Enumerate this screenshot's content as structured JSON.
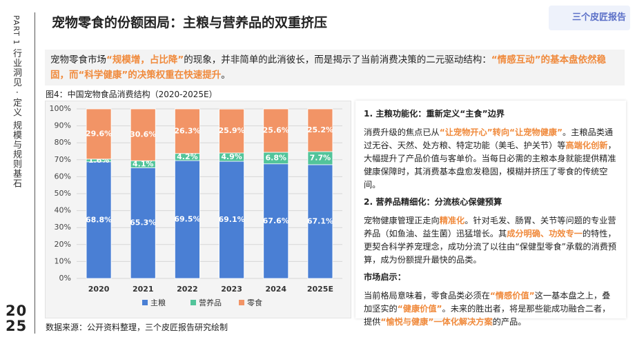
{
  "sidebar": {
    "part": "PART 1",
    "section": "行业洞见 · 定义 规模与规则基石",
    "year": "2025"
  },
  "header": {
    "title": "宠物零食的份额困局：主粮与营养品的双重挤压",
    "logo": "三个皮匠报告"
  },
  "intro": [
    {
      "text": "宠物零食市场"
    },
    {
      "text": "“规模增，占比降”",
      "highlight": true
    },
    {
      "text": "的现象，并非简单的此消彼长，而是揭示了当前消费决策的二元驱动结构："
    },
    {
      "text": "“情感互动”的基本盘依然稳固，而“科学健康”的决策权重在快速提升",
      "highlight": true
    },
    {
      "text": "。"
    }
  ],
  "chart_data": {
    "type": "stacked_bar",
    "caption": "图4：中国宠物食品消费结构（2020-2025E）",
    "categories": [
      "2020",
      "2021",
      "2022",
      "2023",
      "2024",
      "2025E"
    ],
    "series": [
      {
        "name": "主粮",
        "color": "#4a7fd4",
        "values": [
          68.8,
          65.3,
          69.5,
          69.1,
          67.6,
          67.1
        ],
        "value_labels": [
          "68.8%",
          "65.3%",
          "69.5%",
          "69.1%",
          "67.6%",
          "67.1%"
        ]
      },
      {
        "name": "营养品",
        "color": "#52c49a",
        "values": [
          1.6,
          4.1,
          4.2,
          4.9,
          6.8,
          7.7
        ],
        "value_labels": [
          "1.6%",
          "4.1%",
          "4.2%",
          "4.9%",
          "6.8%",
          "7.7%"
        ]
      },
      {
        "name": "零食",
        "color": "#f29466",
        "values": [
          29.6,
          30.6,
          26.3,
          25.9,
          25.6,
          25.2
        ],
        "value_labels": [
          "29.6%",
          "30.6%",
          "26.3%",
          "25.9%",
          "25.6%",
          "25.2%"
        ]
      }
    ],
    "ylim": [
      0,
      100
    ],
    "yticks": [
      {
        "value": 0,
        "label": "0%"
      },
      {
        "value": 10,
        "label": "10%"
      },
      {
        "value": 20,
        "label": "20%"
      },
      {
        "value": 30,
        "label": "30%"
      },
      {
        "value": 40,
        "label": "40%"
      },
      {
        "value": 50,
        "label": "50%"
      },
      {
        "value": 60,
        "label": "60%"
      },
      {
        "value": 70,
        "label": "70%"
      },
      {
        "value": 80,
        "label": "80%"
      },
      {
        "value": 90,
        "label": "90%"
      },
      {
        "value": 100,
        "label": "100%"
      }
    ],
    "grid": true,
    "legend": "bottom"
  },
  "panel": [
    {
      "heading": "1. 主粮功能化：重新定义“主食”边界",
      "body": [
        {
          "text": "消费升级的焦点已从"
        },
        {
          "text": "“让宠物开心”转向“让宠物健康”",
          "highlight": true
        },
        {
          "text": "。主粮品类通过无谷、天然、处方粮、特定功能（美毛、护关节）等"
        },
        {
          "text": "高端化创新",
          "highlight": true
        },
        {
          "text": "，大幅提升了产品价值与客单价。当每日必需的主粮本身就能提供精准健康保障时，其消费基本盘愈发稳固，模糊并挤压了零食的传统空间。"
        }
      ]
    },
    {
      "heading": "2. 营养品精细化：分流核心保健预算",
      "body": [
        {
          "text": "宠物健康管理正走向"
        },
        {
          "text": "精准化",
          "highlight": true
        },
        {
          "text": "。针对毛发、肠胃、关节等问题的专业营养品（如鱼油、益生菌）迅猛增长。其"
        },
        {
          "text": "成分明确、功效专一",
          "highlight": true
        },
        {
          "text": "的特性，更契合科学养宠理念，成功分流了以往由“保健型零食”承载的消费预算，成为份额提升最快的品类。"
        }
      ]
    },
    {
      "heading": "市场启示：",
      "body": [
        {
          "text": "当前格局意味着，零食品类必须在"
        },
        {
          "text": "“情感价值”",
          "highlight": true
        },
        {
          "text": "这一基本盘之上，叠加坚实的"
        },
        {
          "text": "“健康价值”",
          "highlight": true
        },
        {
          "text": "。未来的胜出者，将是那些能成功融合二者，提供"
        },
        {
          "text": "“愉悦与健康”一体化解决方案",
          "highlight": true
        },
        {
          "text": "的产品。"
        }
      ]
    }
  ],
  "footer": {
    "source": "数据来源：公开资料整理，三个皮匠报告研究绘制"
  }
}
